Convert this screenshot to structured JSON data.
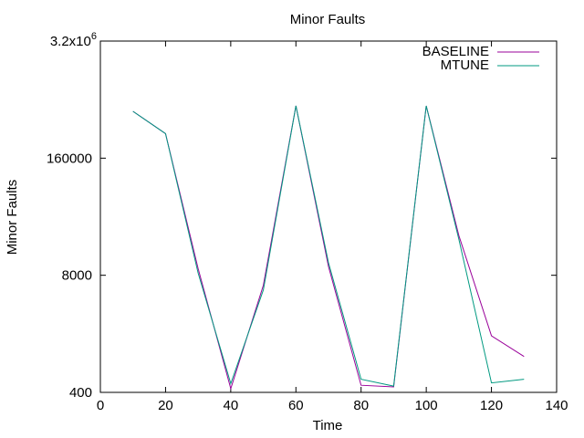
{
  "chart_data": {
    "type": "line",
    "title": "Minor Faults",
    "xlabel": "Time",
    "ylabel": "Minor Faults",
    "xlim": [
      0,
      140
    ],
    "ylim": [
      400,
      3200000
    ],
    "y_scale": "log",
    "x_ticks": [
      0,
      20,
      40,
      60,
      80,
      100,
      120,
      140
    ],
    "y_ticks": [
      {
        "value": 400,
        "label": "400"
      },
      {
        "value": 8000,
        "label": "8000"
      },
      {
        "value": 160000,
        "label": "160000"
      },
      {
        "value": 3200000,
        "label": "3.2x10",
        "exponent": "6"
      }
    ],
    "legend_position": "top-right",
    "grid": false,
    "series": [
      {
        "name": "BASELINE",
        "color": "#990099",
        "x": [
          10,
          20,
          30,
          40,
          50,
          60,
          70,
          80,
          90,
          100,
          110,
          120,
          130
        ],
        "y": [
          530000,
          300000,
          9500,
          440,
          6200,
          610000,
          10000,
          480,
          460,
          610000,
          22000,
          1700,
          1000
        ]
      },
      {
        "name": "MTUNE",
        "color": "#009980",
        "x": [
          10,
          20,
          30,
          40,
          50,
          60,
          70,
          80,
          90,
          100,
          110,
          120,
          130
        ],
        "y": [
          530000,
          300000,
          8500,
          500,
          5500,
          610000,
          11000,
          560,
          470,
          610000,
          20000,
          510,
          560
        ]
      }
    ]
  }
}
